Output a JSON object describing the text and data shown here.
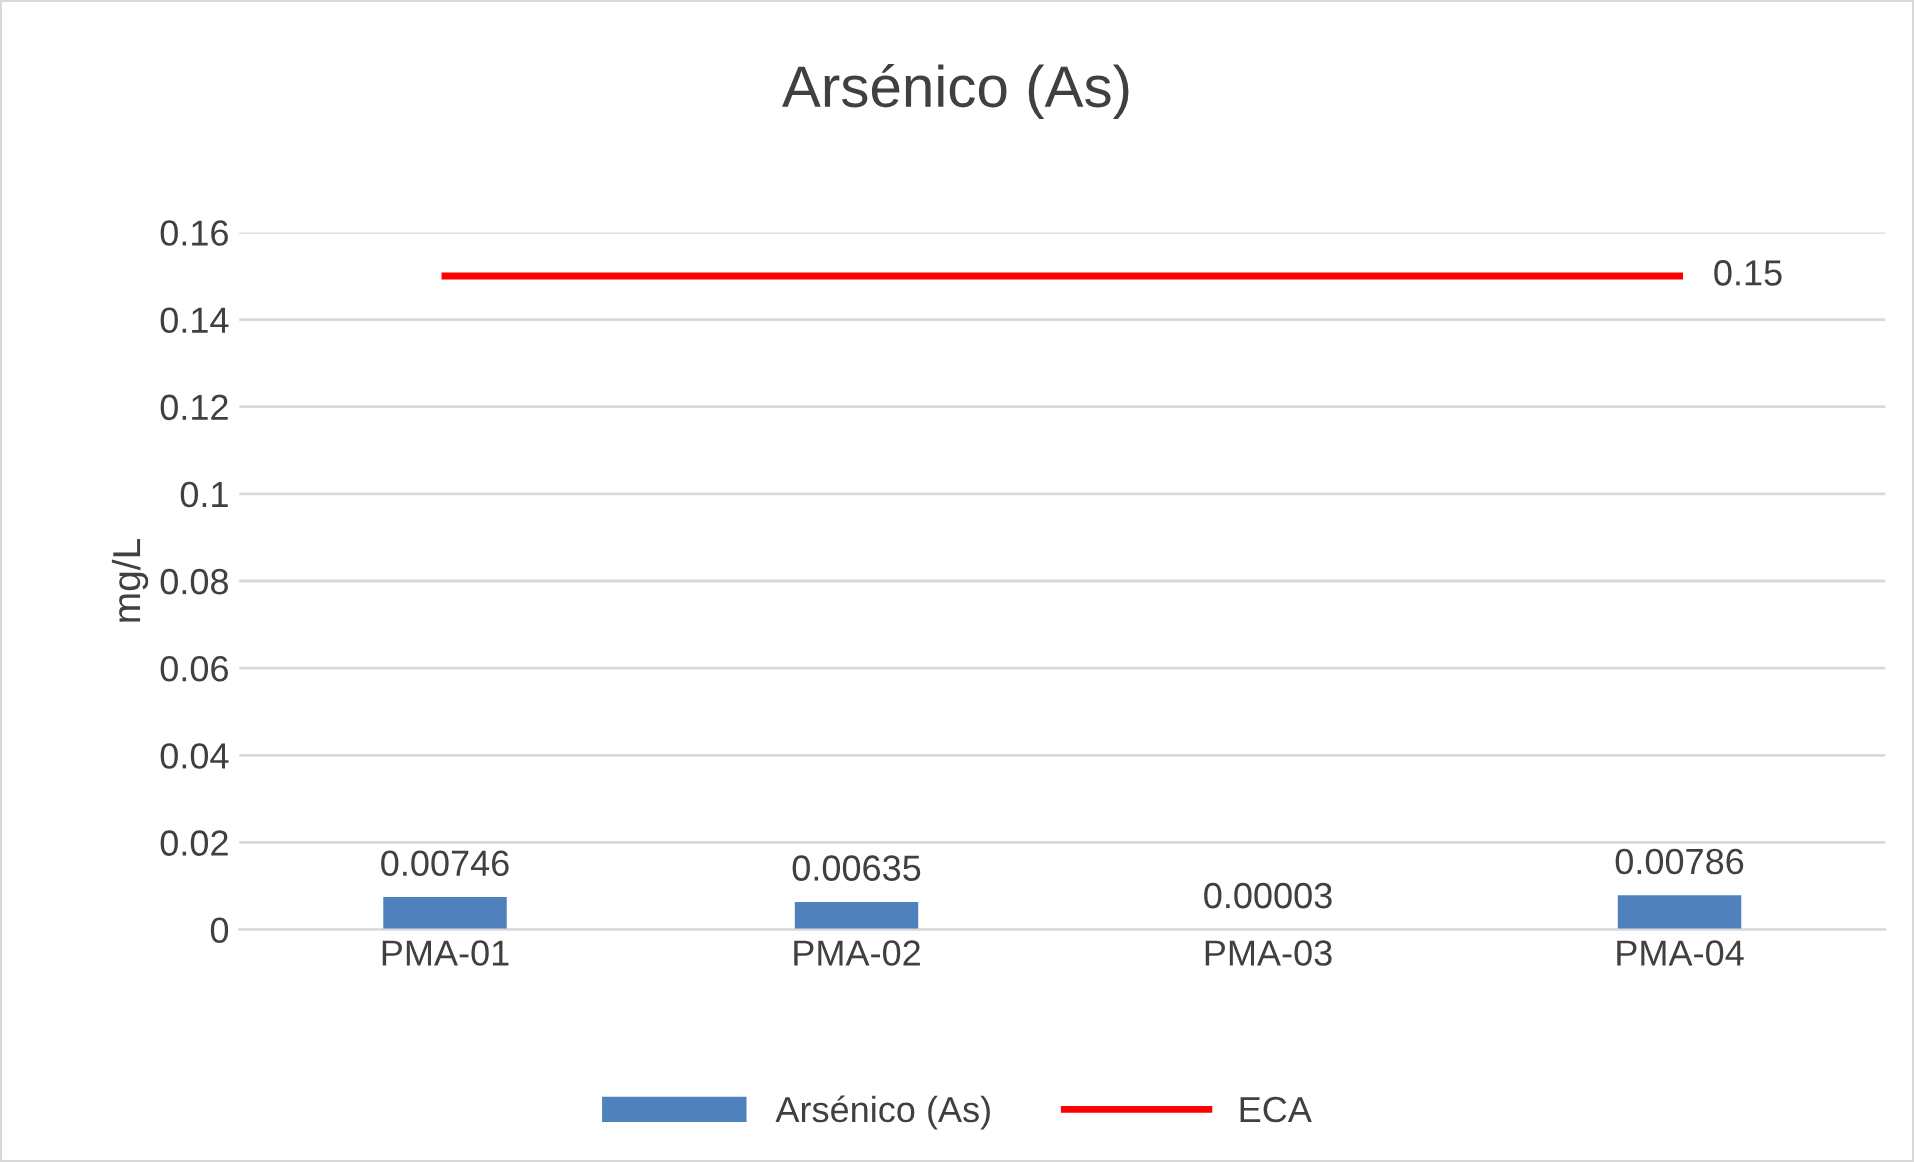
{
  "chart_data": {
    "type": "bar",
    "title": "Arsénico (As)",
    "ylabel": "mg/L",
    "categories": [
      "PMA-01",
      "PMA-02",
      "PMA-03",
      "PMA-04"
    ],
    "series": [
      {
        "name": "Arsénico (As)",
        "color": "#4f81bd",
        "values": [
          0.00746,
          0.00635,
          3e-05,
          0.00786
        ],
        "value_labels": [
          "0.00746",
          "0.00635",
          "0.00003",
          "0.00786"
        ]
      },
      {
        "name": "ECA",
        "type": "line",
        "color": "#ff0000",
        "values": [
          0.15,
          0.15,
          0.15,
          0.15
        ],
        "value_labels": [
          null,
          null,
          null,
          "0.15"
        ]
      }
    ],
    "ylim": [
      0,
      0.16
    ],
    "yticks": [
      0,
      0.02,
      0.04,
      0.06,
      0.08,
      0.1,
      0.12,
      0.14,
      0.16
    ],
    "grid": "y",
    "legend": "bottom",
    "marker": "none",
    "line_style": "solid"
  }
}
